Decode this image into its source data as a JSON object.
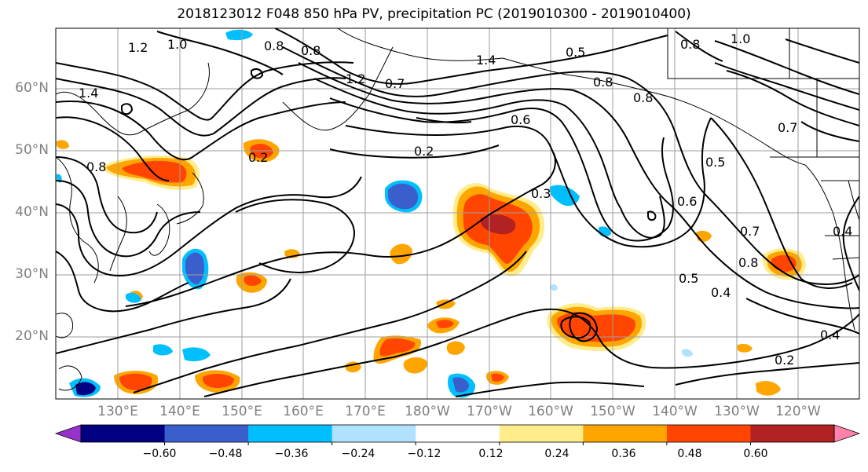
{
  "title": "2018123012 F048 850 hPa PV, precipitation PC (2019010300 - 2019010400)",
  "lat_labels": [
    "60°N",
    "50°N",
    "40°N",
    "30°N",
    "20°N"
  ],
  "lon_labels": [
    "130°E",
    "140°E",
    "150°E",
    "160°E",
    "170°E",
    "180°W",
    "170°W",
    "160°W",
    "150°W",
    "140°W",
    "130°W",
    "120°W"
  ],
  "colorbar": {
    "ticks": [
      "−0.60",
      "−0.48",
      "−0.36",
      "−0.24",
      "−0.12",
      "0.12",
      "0.24",
      "0.36",
      "0.48",
      "0.60"
    ],
    "colors": [
      "#9932cc",
      "#000080",
      "#3a5fcd",
      "#00bfff",
      "#b0e2ff",
      "#ffffff",
      "#ffec8b",
      "#ffa500",
      "#ff4500",
      "#b22222",
      "#ff82ab"
    ]
  },
  "contour_labels": [
    "1.2",
    "1.0",
    "0.8",
    "0.8",
    "1.4",
    "1.2",
    "0.7",
    "1.4",
    "0.5",
    "0.8",
    "0.8",
    "1.0",
    "0.8",
    "0.8",
    "0.6",
    "0.2",
    "0.2",
    "0.3",
    "0.6",
    "0.5",
    "0.7",
    "0.7",
    "0.8",
    "0.5",
    "0.4",
    "0.4",
    "0.4",
    "0.2"
  ]
}
